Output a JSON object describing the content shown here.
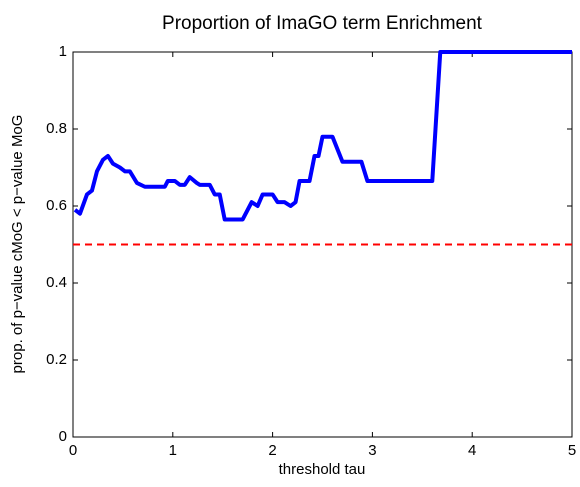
{
  "chart_data": {
    "type": "line",
    "title": "Proportion of ImaGO term Enrichment",
    "xlabel": "threshold tau",
    "ylabel": "prop. of  p−value cMoG < p−value MoG",
    "xlim": [
      0,
      5
    ],
    "ylim": [
      0,
      1
    ],
    "xticks": [
      0,
      1,
      2,
      3,
      4,
      5
    ],
    "yticks": [
      0,
      0.2,
      0.4,
      0.6,
      0.8,
      1
    ],
    "series": [
      {
        "color": "#0000ff",
        "x": [
          0.02,
          0.07,
          0.14,
          0.19,
          0.24,
          0.3,
          0.35,
          0.4,
          0.47,
          0.52,
          0.57,
          0.64,
          0.72,
          0.92,
          0.95,
          1.02,
          1.07,
          1.12,
          1.17,
          1.24,
          1.27,
          1.37,
          1.42,
          1.47,
          1.52,
          1.7,
          1.79,
          1.85,
          1.9,
          2.0,
          2.05,
          2.12,
          2.18,
          2.23,
          2.27,
          2.37,
          2.42,
          2.46,
          2.5,
          2.6,
          2.7,
          2.89,
          2.95,
          3.6,
          3.68,
          5
        ],
        "values": [
          0.59,
          0.58,
          0.63,
          0.64,
          0.69,
          0.72,
          0.73,
          0.71,
          0.7,
          0.69,
          0.69,
          0.66,
          0.65,
          0.65,
          0.665,
          0.665,
          0.655,
          0.655,
          0.675,
          0.66,
          0.655,
          0.655,
          0.63,
          0.63,
          0.565,
          0.565,
          0.61,
          0.6,
          0.63,
          0.63,
          0.61,
          0.61,
          0.6,
          0.61,
          0.665,
          0.665,
          0.73,
          0.73,
          0.78,
          0.78,
          0.715,
          0.715,
          0.665,
          0.665,
          1,
          1
        ]
      }
    ],
    "reference_line": {
      "value": 0.5,
      "color": "#ff0000"
    }
  }
}
